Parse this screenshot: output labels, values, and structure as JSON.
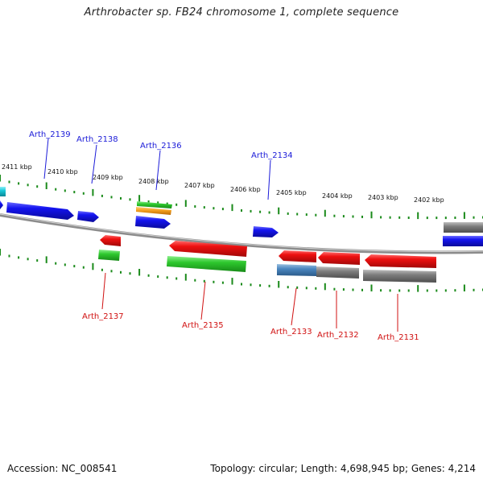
{
  "title": "Arthrobacter sp. FB24 chromosome 1, complete sequence",
  "footer": {
    "accession": "Accession: NC_008541",
    "topology": "Topology: circular; Length: 4,698,945 bp; Genes: 4,214"
  },
  "scale": [
    "2411 kbp",
    "2410 kbp",
    "2409 kbp",
    "2408 kbp",
    "2407 kbp",
    "2406 kbp",
    "2405 kbp",
    "2404 kbp",
    "2403 kbp",
    "2402 kbp"
  ],
  "colors": {
    "top_strand": "#1818e8",
    "bottom_strand": "#e81010",
    "cds_green": "#2ecc2e",
    "grey_feature": "#7a7a7a",
    "cyan_feature": "#18c8d8",
    "orange_feature": "#f0a020",
    "tick": "#1a8a1a",
    "backbone": "#8c8c8c"
  },
  "genes_top": [
    "Arth_2139",
    "Arth_2138",
    "Arth_2136",
    "Arth_2134"
  ],
  "genes_bottom": [
    "Arth_2137",
    "Arth_2135",
    "Arth_2133",
    "Arth_2132",
    "Arth_2131"
  ]
}
